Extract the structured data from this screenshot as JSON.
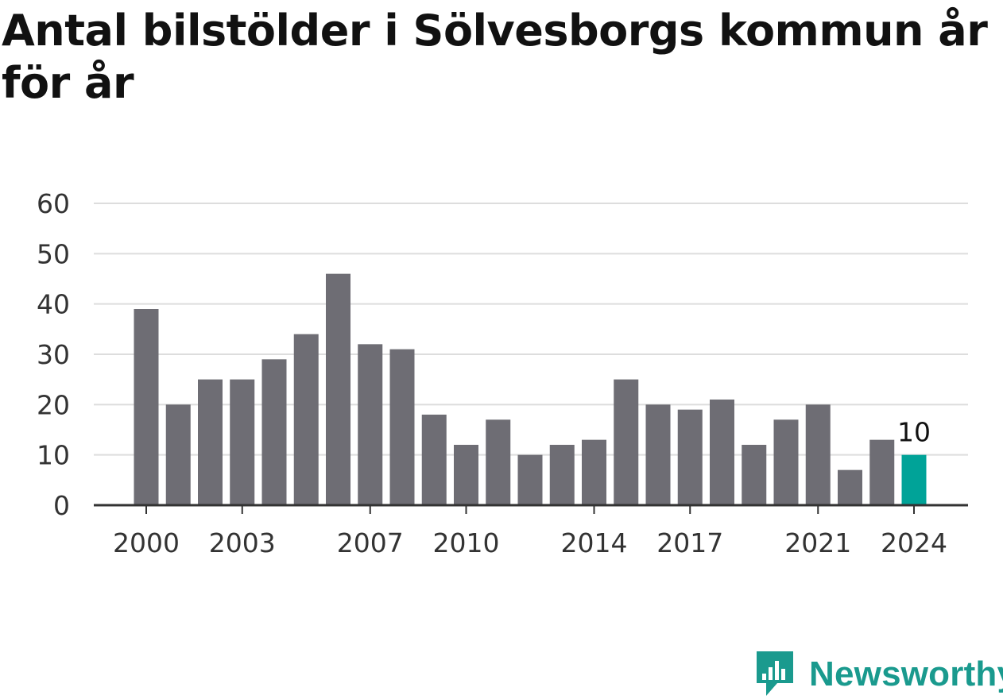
{
  "title": "Antal bilstölder i Sölvesborgs kommun år för år",
  "brand": {
    "name": "Newsworthy",
    "color": "#1a9a8e",
    "icon": "newsworthy-logo-icon"
  },
  "colors": {
    "bar": "#6e6d74",
    "highlight": "#00a398",
    "grid": "#dddddd",
    "axis": "#333333"
  },
  "chart_data": {
    "type": "bar",
    "title": "Antal bilstölder i Sölvesborgs kommun år för år",
    "xlabel": "",
    "ylabel": "",
    "categories": [
      2000,
      2001,
      2002,
      2003,
      2004,
      2005,
      2006,
      2007,
      2008,
      2009,
      2010,
      2011,
      2012,
      2013,
      2014,
      2015,
      2016,
      2017,
      2018,
      2019,
      2020,
      2021,
      2022,
      2023,
      2024
    ],
    "values": [
      39,
      20,
      25,
      25,
      29,
      34,
      46,
      32,
      31,
      18,
      12,
      17,
      10,
      12,
      13,
      25,
      20,
      19,
      21,
      12,
      17,
      20,
      7,
      13,
      10
    ],
    "highlight": {
      "category": 2024,
      "label": "10"
    },
    "x_tick_labels": [
      "2000",
      "2003",
      "2007",
      "2010",
      "2014",
      "2017",
      "2021",
      "2024"
    ],
    "y_ticks": [
      "0",
      "10",
      "20",
      "30",
      "40",
      "50",
      "60"
    ],
    "ylim": [
      0,
      60
    ],
    "grid": true,
    "legend": "none"
  }
}
